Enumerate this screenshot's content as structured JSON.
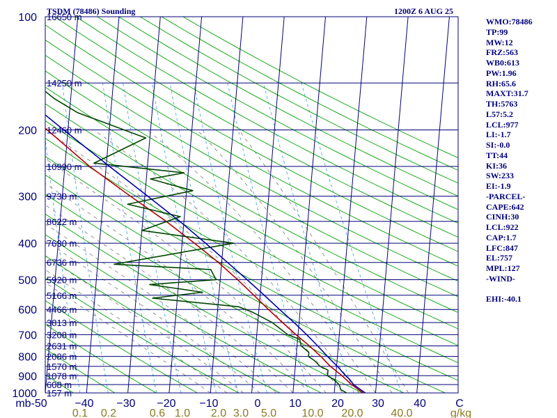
{
  "header": {
    "title": "TSDM (78486) Sounding",
    "datetime": "1200Z  6 AUG 25"
  },
  "panel": {
    "lines": [
      "WMO:78486",
      "TP:99",
      "MW:12",
      "FRZ:563",
      "WB0:613",
      "PW:1.96",
      "RH:65.6",
      "MAXT:31.7",
      "TH:5763",
      "L57:5.2",
      "LCL:977",
      "LI:-1.7",
      "SI:-0.0",
      "TT:44",
      "KI:36",
      "SW:233",
      "EI:-1.9",
      "-PARCEL-",
      "CAPE:642",
      "CINH:30",
      "LCL:922",
      "CAP:1.7",
      "LFC:847",
      "EL:757",
      "MPL:127",
      "-WIND-",
      "",
      "EHI:-40.1"
    ]
  },
  "colors": {
    "frame": "#00007a",
    "isobar": "#00007a",
    "isotherm": "#00007a",
    "dry_adiabat": "#00a000",
    "moist_adiabat": "#777777",
    "mixing_ratio": "#4aa6e6",
    "temperature": "#b00000",
    "dewpoint": "#004400",
    "parcel": "#0000a8",
    "mixing_ratio_label": "#8a7a20"
  },
  "chart_data": {
    "type": "skew-t",
    "pressure_range_mb": [
      100,
      1000
    ],
    "temperature_range_c": [
      -50,
      50
    ],
    "y_axis_unit": "mb",
    "x_axis_unit": "C",
    "pressure_ticks": [
      100,
      200,
      300,
      400,
      500,
      600,
      700,
      800,
      900,
      1000
    ],
    "temperature_ticks": [
      -50,
      -40,
      -30,
      -20,
      -10,
      0,
      10,
      20,
      30,
      40
    ],
    "x_tick_labels": [
      "mb-50",
      "−40",
      "−30",
      "−20",
      "−10",
      "0",
      "10",
      "20",
      "30",
      "40",
      "C"
    ],
    "mixing_ratio_labels": [
      "0.1",
      "0.2",
      "0.6",
      "1.0",
      "2.0",
      "3.0",
      "5.0",
      "10.0",
      "20.0",
      "40.0",
      "g/kg"
    ],
    "mixing_ratio_values": [
      0.1,
      0.2,
      0.6,
      1.0,
      2.0,
      3.0,
      5.0,
      10.0,
      20.0,
      40.0
    ],
    "mandatory_levels": [
      {
        "p": 100,
        "height": "16650 m"
      },
      {
        "p": 150,
        "height": "14250 m"
      },
      {
        "p": 200,
        "height": "12460 m"
      },
      {
        "p": 250,
        "height": "10990 m"
      },
      {
        "p": 300,
        "height": "9730 m"
      },
      {
        "p": 350,
        "height": "8622 m"
      },
      {
        "p": 400,
        "height": "7630 m"
      },
      {
        "p": 450,
        "height": "6736 m"
      },
      {
        "p": 500,
        "height": "5920 m"
      },
      {
        "p": 550,
        "height": "5166 m"
      },
      {
        "p": 600,
        "height": "4466 m"
      },
      {
        "p": 650,
        "height": "3813 m"
      },
      {
        "p": 700,
        "height": "3208 m"
      },
      {
        "p": 750,
        "height": "2631 m"
      },
      {
        "p": 800,
        "height": "2086 m"
      },
      {
        "p": 850,
        "height": "1570 m"
      },
      {
        "p": 900,
        "height": "1078 m"
      },
      {
        "p": 950,
        "height": "608 m"
      },
      {
        "p": 1000,
        "height": "157 m"
      }
    ],
    "series": [
      {
        "role": "temperature",
        "points": [
          [
            1010,
            28.5
          ],
          [
            1000,
            27.0
          ],
          [
            950,
            24.0
          ],
          [
            900,
            21.5
          ],
          [
            850,
            18.5
          ],
          [
            800,
            16.0
          ],
          [
            750,
            13.0
          ],
          [
            700,
            9.5
          ],
          [
            650,
            6.0
          ],
          [
            600,
            2.3
          ],
          [
            550,
            -1.5
          ],
          [
            500,
            -5.8
          ],
          [
            450,
            -10.8
          ],
          [
            400,
            -17.0
          ],
          [
            350,
            -24.3
          ],
          [
            300,
            -33.5
          ],
          [
            250,
            -44.0
          ],
          [
            200,
            -55.0
          ],
          [
            170,
            -63.5
          ],
          [
            150,
            -67.0
          ],
          [
            130,
            -70.0
          ],
          [
            100,
            -76.0
          ]
        ]
      },
      {
        "role": "dewpoint",
        "points": [
          [
            1010,
            24.0
          ],
          [
            1000,
            23.0
          ],
          [
            980,
            21.5
          ],
          [
            950,
            21.0
          ],
          [
            920,
            19.5
          ],
          [
            900,
            18.0
          ],
          [
            870,
            18.0
          ],
          [
            850,
            16.0
          ],
          [
            820,
            14.5
          ],
          [
            800,
            13.0
          ],
          [
            780,
            13.0
          ],
          [
            750,
            11.0
          ],
          [
            720,
            10.5
          ],
          [
            700,
            7.5
          ],
          [
            650,
            3.5
          ],
          [
            610,
            -1.5
          ],
          [
            590,
            -5.0
          ],
          [
            560,
            -26.0
          ],
          [
            540,
            -14.0
          ],
          [
            515,
            -27.0
          ],
          [
            500,
            -11.0
          ],
          [
            470,
            -12.5
          ],
          [
            455,
            -36.0
          ],
          [
            400,
            -7.5
          ],
          [
            370,
            -30.0
          ],
          [
            340,
            -21.0
          ],
          [
            315,
            -34.0
          ],
          [
            290,
            -18.5
          ],
          [
            270,
            -29.0
          ],
          [
            260,
            -21.0
          ],
          [
            245,
            -43.0
          ],
          [
            210,
            -31.0
          ],
          [
            190,
            -42.0
          ],
          [
            180,
            -48.0
          ],
          [
            165,
            -54.0
          ],
          [
            150,
            -59.0
          ],
          [
            140,
            -65.0
          ],
          [
            130,
            -71.0
          ],
          [
            115,
            -79.0
          ],
          [
            100,
            -85.0
          ]
        ]
      },
      {
        "role": "parcel",
        "points": [
          [
            1010,
            28.5
          ],
          [
            1000,
            27.5
          ],
          [
            950,
            24.5
          ],
          [
            922,
            23.5
          ],
          [
            900,
            22.4
          ],
          [
            850,
            20.2
          ],
          [
            800,
            17.6
          ],
          [
            750,
            15.0
          ],
          [
            700,
            12.1
          ],
          [
            650,
            8.8
          ],
          [
            600,
            5.0
          ],
          [
            550,
            1.0
          ],
          [
            500,
            -3.5
          ],
          [
            450,
            -8.6
          ],
          [
            400,
            -14.3
          ],
          [
            350,
            -21.0
          ],
          [
            300,
            -29.3
          ],
          [
            250,
            -39.2
          ],
          [
            200,
            -51.0
          ],
          [
            175,
            -58.0
          ],
          [
            150,
            -66.0
          ],
          [
            125,
            -76.0
          ],
          [
            110,
            -83.0
          ]
        ]
      }
    ]
  }
}
